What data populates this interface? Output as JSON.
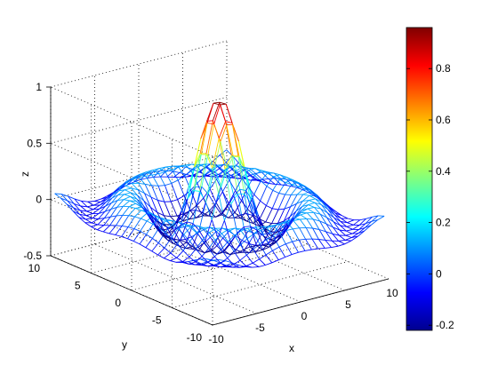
{
  "chart_data": {
    "type": "mesh3d",
    "function": "sinc(r)",
    "x": {
      "min": -10,
      "max": 10,
      "step": 0.75
    },
    "y": {
      "min": -10,
      "max": 10,
      "step": 0.75
    },
    "zlim": [
      -0.5,
      1
    ],
    "xlabel": "x",
    "ylabel": "y",
    "zlabel": "z",
    "xticks": [
      "-10",
      "-5",
      "0",
      "5",
      "10"
    ],
    "yticks": [
      "-10",
      "-5",
      "0",
      "5",
      "10"
    ],
    "zticks": [
      "-0.5",
      "0",
      "0.5",
      "1"
    ],
    "colorbar": {
      "range": [
        -0.22,
        0.96
      ],
      "ticks": [
        "-0.2",
        "0",
        "0.2",
        "0.4",
        "0.6",
        "0.8"
      ],
      "colormap": "jet"
    },
    "grid": true
  }
}
